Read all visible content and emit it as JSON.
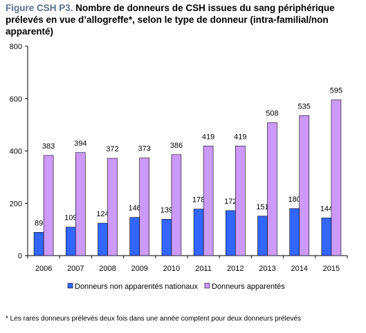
{
  "figure": {
    "title_prefix": "Figure CSH P3.",
    "title_text": "Nombre de donneurs de CSH issues du sang périphérique prélevés en vue d’allogreffe*, selon le type de donneur (intra-familial/non apparenté)",
    "footnote": "* Les rares donneurs prélevés deux fois dans une année comptent pour deux donneurs prélevés"
  },
  "colors": {
    "series_blue": "#3366ff",
    "series_violet": "#cc99ff",
    "title_prefix": "#5b6f91"
  },
  "chart_data": {
    "type": "bar",
    "categories": [
      "2006",
      "2007",
      "2008",
      "2009",
      "2010",
      "2011",
      "2012",
      "2013",
      "2014",
      "2015"
    ],
    "series": [
      {
        "name": "Donneurs non apparentés nationaux",
        "color": "#3366ff",
        "values": [
          89,
          109,
          124,
          146,
          139,
          178,
          172,
          151,
          180,
          144
        ]
      },
      {
        "name": "Donneurs apparentés",
        "color": "#cc99ff",
        "values": [
          383,
          394,
          372,
          373,
          386,
          419,
          419,
          508,
          535,
          595
        ]
      }
    ],
    "ylim": [
      0,
      800
    ],
    "yticks": [
      0,
      200,
      400,
      600,
      800
    ],
    "grid": false,
    "legend": "bottom",
    "data_labels": true
  }
}
